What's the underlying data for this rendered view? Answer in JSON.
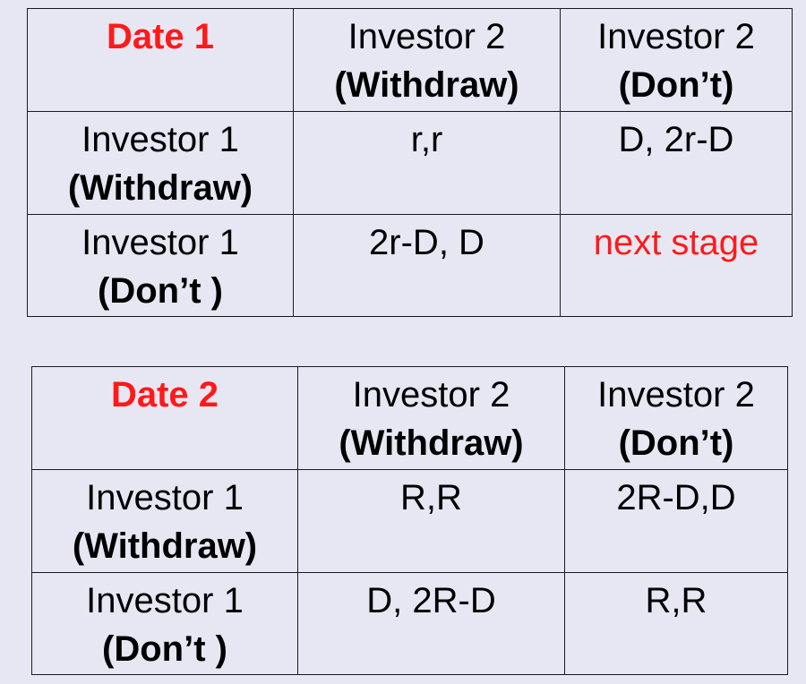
{
  "tables": [
    {
      "date_label": "Date 1",
      "col_headers": [
        {
          "name": "Investor 2",
          "action": "(Withdraw)"
        },
        {
          "name": "Investor 2",
          "action": "(Don’t)"
        }
      ],
      "rows": [
        {
          "name": "Investor 1",
          "action": "(Withdraw)",
          "cells": [
            "r,r",
            "D, 2r-D"
          ]
        },
        {
          "name": "Investor 1",
          "action": "(Don’t )",
          "cells": [
            "2r-D, D",
            "next stage"
          ]
        }
      ]
    },
    {
      "date_label": "Date 2",
      "col_headers": [
        {
          "name": "Investor 2",
          "action": "(Withdraw)"
        },
        {
          "name": "Investor 2",
          "action": "(Don’t)"
        }
      ],
      "rows": [
        {
          "name": "Investor 1",
          "action": "(Withdraw)",
          "cells": [
            "R,R",
            "2R-D,D"
          ]
        },
        {
          "name": "Investor 1",
          "action": "(Don’t )",
          "cells": [
            "D, 2R-D",
            "R,R"
          ]
        }
      ]
    }
  ],
  "colors": {
    "background": "#e7e7f3",
    "highlight": "#ff1a1a",
    "border": "#1a1a1a"
  }
}
